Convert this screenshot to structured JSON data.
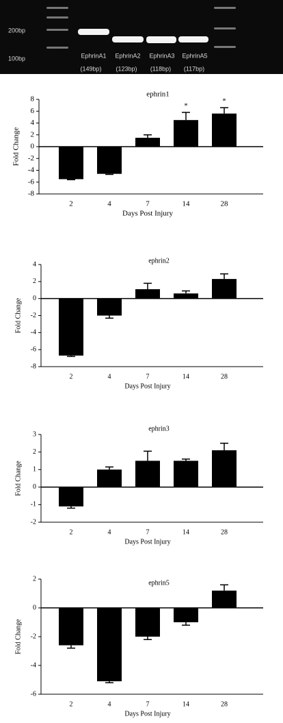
{
  "gel": {
    "ladder_labels": [
      "200bp",
      "100bp"
    ],
    "lanes": [
      {
        "name": "EphrinA1",
        "size": "(149bp)"
      },
      {
        "name": "EphrinA2",
        "size": "(123bp)"
      },
      {
        "name": "EphrinA3",
        "size": "(118bp)"
      },
      {
        "name": "EphrinA5",
        "size": "(117bp)"
      }
    ]
  },
  "chart_data": [
    {
      "type": "bar",
      "title": "ephrin1",
      "xlabel": "Days Post Injury",
      "ylabel": "Fold Change",
      "categories": [
        "2",
        "4",
        "7",
        "14",
        "28"
      ],
      "values": [
        -5.5,
        -4.6,
        1.5,
        4.5,
        5.6
      ],
      "errors": [
        0.1,
        0.1,
        0.5,
        1.3,
        1.0
      ],
      "annotations": [
        null,
        null,
        null,
        "*",
        "*"
      ],
      "color": "#000000",
      "ylim": [
        -8,
        8
      ],
      "yticks": [
        -8,
        -6,
        -4,
        -2,
        0,
        2,
        4,
        6,
        8
      ]
    },
    {
      "type": "bar",
      "title": "ephrin2",
      "xlabel": "Days Post Injury",
      "ylabel": "Fold Change",
      "categories": [
        "2",
        "4",
        "7",
        "14",
        "28"
      ],
      "values": [
        -6.7,
        -2.0,
        1.1,
        0.6,
        2.3
      ],
      "errors": [
        0.1,
        0.3,
        0.7,
        0.3,
        0.6
      ],
      "color": "#000000",
      "ylim": [
        -8,
        4
      ],
      "yticks": [
        -8,
        -6,
        -4,
        -2,
        0,
        2,
        4
      ]
    },
    {
      "type": "bar",
      "title": "ephrin3",
      "xlabel": "Days Post Injury",
      "ylabel": "Fold Change",
      "categories": [
        "2",
        "4",
        "7",
        "14",
        "28"
      ],
      "values": [
        -1.1,
        1.0,
        1.5,
        1.5,
        2.1
      ],
      "errors": [
        0.1,
        0.15,
        0.55,
        0.1,
        0.4
      ],
      "color": "#000000",
      "ylim": [
        -2,
        3
      ],
      "yticks": [
        -2,
        -1,
        0,
        1,
        2,
        3
      ]
    },
    {
      "type": "bar",
      "title": "ephrin5",
      "xlabel": "Days Post Injury",
      "ylabel": "Fold Change",
      "categories": [
        "2",
        "4",
        "7",
        "14",
        "28"
      ],
      "values": [
        -2.6,
        -5.1,
        -2.0,
        -1.0,
        1.2
      ],
      "errors": [
        0.2,
        0.1,
        0.2,
        0.2,
        0.4
      ],
      "color": "#000000",
      "ylim": [
        -6,
        2
      ],
      "yticks": [
        -6,
        -4,
        -2,
        0,
        2
      ]
    }
  ]
}
